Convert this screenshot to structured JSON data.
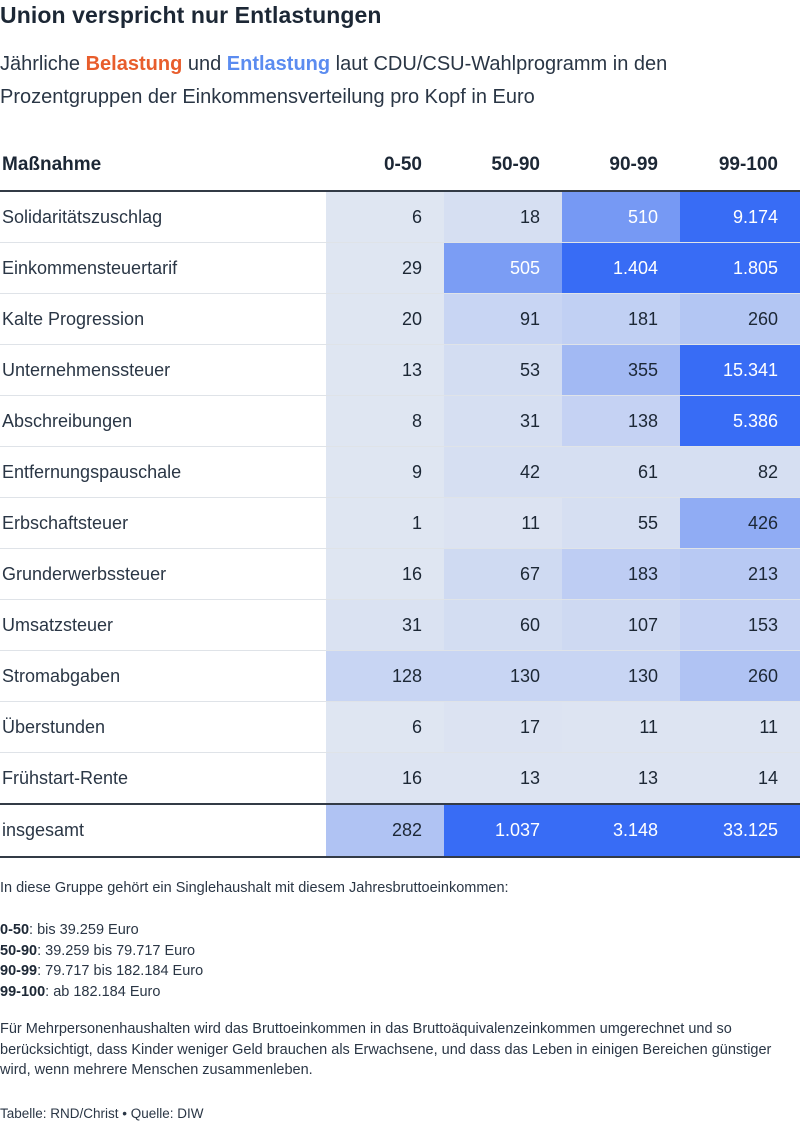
{
  "title": "Union verspricht nur Entlastungen",
  "subtitle": {
    "part1": "Jährliche ",
    "burden": "Belastung",
    "part2": " und ",
    "relief": "Entlastung",
    "part3": " laut CDU/CSU-Wahlprogramm in den Prozentgruppen der Einkommensverteilung pro Kopf in Euro"
  },
  "colors": {
    "burden": "#e85d2c",
    "relief": "#5b8cf0",
    "text": "#1c2735"
  },
  "chart_data": {
    "type": "table",
    "columns": [
      "Maßnahme",
      "0-50",
      "50-90",
      "90-99",
      "99-100"
    ],
    "rows": [
      {
        "label": "Solidaritätszuschlag",
        "display": [
          "6",
          "18",
          "510",
          "9.174"
        ],
        "values": [
          6,
          18,
          510,
          9174
        ],
        "shades": [
          0.05,
          0.1,
          0.65,
          1.0
        ]
      },
      {
        "label": "Einkommensteuertarif",
        "display": [
          "29",
          "505",
          "1.404",
          "1.805"
        ],
        "values": [
          29,
          505,
          1404,
          1805
        ],
        "shades": [
          0.05,
          0.62,
          1.0,
          1.0
        ]
      },
      {
        "label": "Kalte Progression",
        "display": [
          "20",
          "91",
          "181",
          "260"
        ],
        "values": [
          20,
          91,
          181,
          260
        ],
        "shades": [
          0.05,
          0.18,
          0.22,
          0.3
        ]
      },
      {
        "label": "Unternehmenssteuer",
        "display": [
          "13",
          "53",
          "355",
          "15.341"
        ],
        "values": [
          13,
          53,
          355,
          15341
        ],
        "shades": [
          0.05,
          0.12,
          0.4,
          1.0
        ]
      },
      {
        "label": "Abschreibungen",
        "display": [
          "8",
          "31",
          "138",
          "5.386"
        ],
        "values": [
          8,
          31,
          138,
          5386
        ],
        "shades": [
          0.05,
          0.1,
          0.2,
          1.0
        ]
      },
      {
        "label": "Entfernungspauschale",
        "display": [
          "9",
          "42",
          "61",
          "82"
        ],
        "values": [
          9,
          42,
          61,
          82
        ],
        "shades": [
          0.05,
          0.1,
          0.1,
          0.1
        ]
      },
      {
        "label": "Erbschaftsteuer",
        "display": [
          "1",
          "11",
          "55",
          "426"
        ],
        "values": [
          1,
          11,
          55,
          426
        ],
        "shades": [
          0.05,
          0.07,
          0.1,
          0.5
        ]
      },
      {
        "label": "Grunderwerbssteuer",
        "display": [
          "16",
          "67",
          "183",
          "213"
        ],
        "values": [
          16,
          67,
          183,
          213
        ],
        "shades": [
          0.05,
          0.14,
          0.24,
          0.27
        ]
      },
      {
        "label": "Umsatzsteuer",
        "display": [
          "31",
          "60",
          "107",
          "153"
        ],
        "values": [
          31,
          60,
          107,
          153
        ],
        "shades": [
          0.08,
          0.12,
          0.15,
          0.2
        ]
      },
      {
        "label": "Stromabgaben",
        "display": [
          "128",
          "130",
          "130",
          "260"
        ],
        "values": [
          128,
          130,
          130,
          260
        ],
        "shades": [
          0.18,
          0.18,
          0.18,
          0.32
        ]
      },
      {
        "label": "Überstunden",
        "display": [
          "6",
          "17",
          "11",
          "11"
        ],
        "values": [
          6,
          17,
          11,
          11
        ],
        "shades": [
          0.05,
          0.07,
          0.06,
          0.06
        ]
      },
      {
        "label": "Frühstart-Rente",
        "display": [
          "16",
          "13",
          "13",
          "14"
        ],
        "values": [
          16,
          13,
          13,
          14
        ],
        "shades": [
          0.06,
          0.06,
          0.06,
          0.06
        ]
      }
    ],
    "total": {
      "label": "insgesamt",
      "display": [
        "282",
        "1.037",
        "3.148",
        "33.125"
      ],
      "values": [
        282,
        1037,
        3148,
        33125
      ],
      "shades": [
        0.32,
        1.0,
        1.0,
        1.0
      ]
    }
  },
  "notes": {
    "intro": "In diese Gruppe gehört ein Singlehaushalt mit diesem Jahresbruttoeinkommen:",
    "groups": [
      {
        "key": "0-50",
        "text": ": bis 39.259 Euro"
      },
      {
        "key": "50-90",
        "text": ": 39.259 bis 79.717 Euro"
      },
      {
        "key": "90-99",
        "text": ": 79.717 bis 182.184 Euro"
      },
      {
        "key": "99-100",
        "text": ": ab 182.184 Euro"
      }
    ],
    "explanation": "Für Mehrpersonenhaushalten wird das Bruttoeinkommen in das Bruttoäquivalenzeinkommen umgerechnet und so berücksichtigt, dass Kinder weniger Geld brauchen als Erwachsene, und dass das Leben in einigen Bereichen günstiger wird, wenn mehrere Menschen zusammenleben.",
    "source": "Tabelle: RND/Christ • Quelle: DIW"
  }
}
